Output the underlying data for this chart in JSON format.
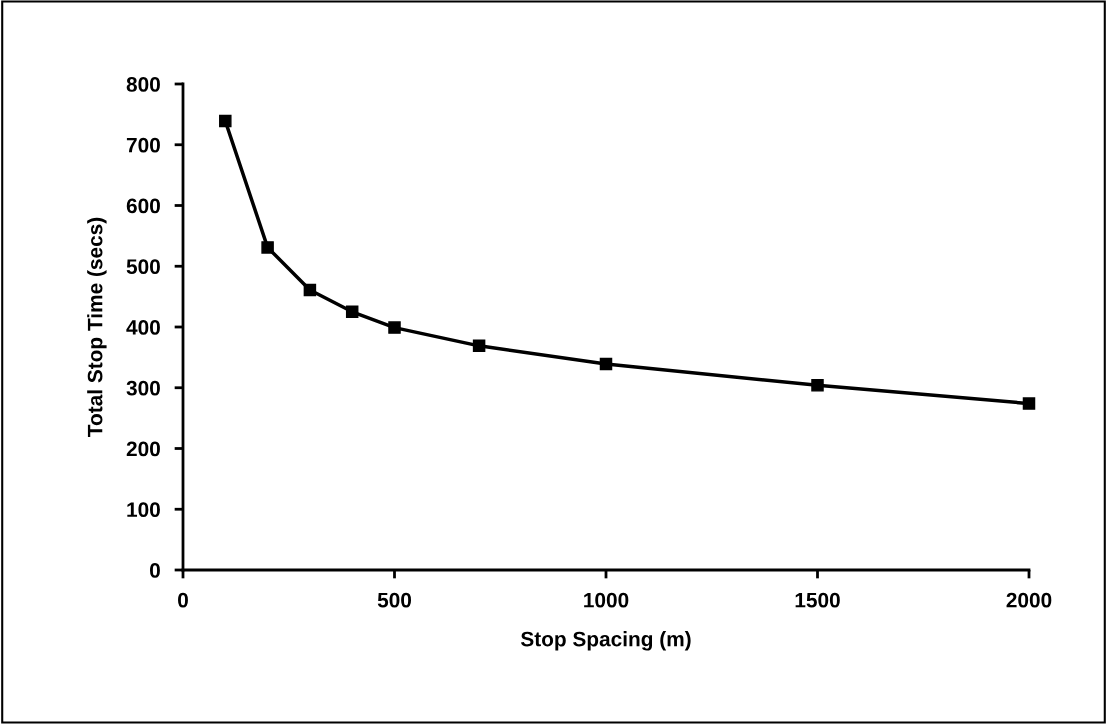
{
  "chart_data": {
    "type": "line",
    "xlabel": "Stop Spacing (m)",
    "ylabel": "Total Stop Time (secs)",
    "x": [
      100,
      200,
      300,
      400,
      500,
      700,
      1000,
      1500,
      2000
    ],
    "series": [
      {
        "color": "#000000",
        "values": [
          739,
          531,
          461,
          425,
          399,
          369,
          339,
          304,
          274
        ]
      }
    ],
    "xlim": [
      0,
      2000
    ],
    "xticks": [
      0,
      500,
      1000,
      1500,
      2000
    ],
    "ylim": [
      0,
      800
    ],
    "yticks": [
      0,
      100,
      200,
      300,
      400,
      500,
      600,
      700,
      800
    ],
    "grid": false,
    "legend": false,
    "marker": "square",
    "line_style": "solid"
  }
}
